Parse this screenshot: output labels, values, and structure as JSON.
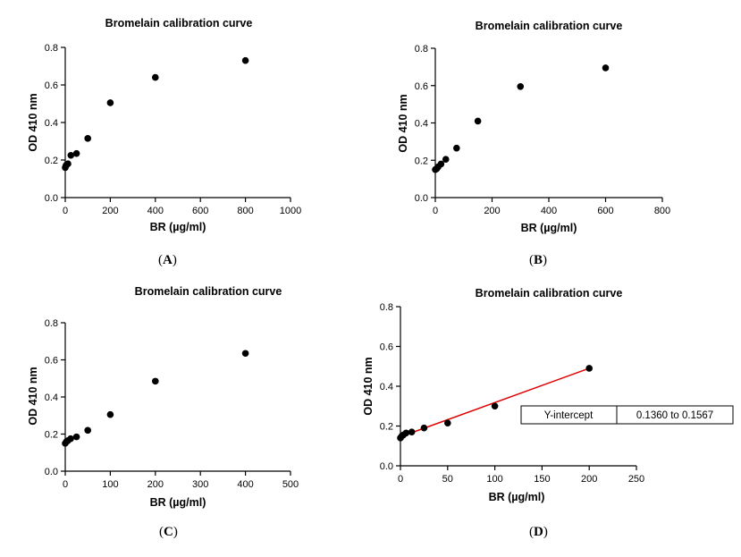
{
  "chart_data": [
    {
      "type": "scatter",
      "title": "Bromelain calibration curve",
      "xlabel": "BR (µg/ml)",
      "ylabel": "OD 410 nm",
      "xlim": [
        0,
        1000
      ],
      "ylim": [
        0,
        0.8
      ],
      "xticks": [
        0,
        200,
        400,
        600,
        800,
        1000
      ],
      "yticks": [
        0.0,
        0.2,
        0.4,
        0.6,
        0.8
      ],
      "grid": false,
      "points": [
        {
          "x": 0,
          "y": 0.16
        },
        {
          "x": 3,
          "y": 0.17
        },
        {
          "x": 6,
          "y": 0.175
        },
        {
          "x": 12,
          "y": 0.18
        },
        {
          "x": 25,
          "y": 0.225
        },
        {
          "x": 50,
          "y": 0.235
        },
        {
          "x": 100,
          "y": 0.315
        },
        {
          "x": 200,
          "y": 0.505
        },
        {
          "x": 400,
          "y": 0.64
        },
        {
          "x": 800,
          "y": 0.73
        }
      ],
      "caption": "A"
    },
    {
      "type": "scatter",
      "title": "Bromelain calibration curve",
      "xlabel": "BR (µg/ml)",
      "ylabel": "OD 410 nm",
      "xlim": [
        0,
        800
      ],
      "ylim": [
        0,
        0.8
      ],
      "xticks": [
        0,
        200,
        400,
        600,
        800
      ],
      "yticks": [
        0.0,
        0.2,
        0.4,
        0.6,
        0.8
      ],
      "grid": false,
      "points": [
        {
          "x": 0,
          "y": 0.15
        },
        {
          "x": 5,
          "y": 0.155
        },
        {
          "x": 10,
          "y": 0.165
        },
        {
          "x": 20,
          "y": 0.18
        },
        {
          "x": 37,
          "y": 0.205
        },
        {
          "x": 75,
          "y": 0.265
        },
        {
          "x": 150,
          "y": 0.41
        },
        {
          "x": 300,
          "y": 0.595
        },
        {
          "x": 600,
          "y": 0.695
        }
      ],
      "caption": "B"
    },
    {
      "type": "scatter",
      "title": "Bromelain calibration curve",
      "xlabel": "BR (µg/ml)",
      "ylabel": "OD 410 nm",
      "xlim": [
        0,
        500
      ],
      "ylim": [
        0,
        0.8
      ],
      "xticks": [
        0,
        100,
        200,
        300,
        400,
        500
      ],
      "yticks": [
        0.0,
        0.2,
        0.4,
        0.6,
        0.8
      ],
      "grid": false,
      "points": [
        {
          "x": 0,
          "y": 0.15
        },
        {
          "x": 3,
          "y": 0.16
        },
        {
          "x": 6,
          "y": 0.165
        },
        {
          "x": 12,
          "y": 0.175
        },
        {
          "x": 25,
          "y": 0.185
        },
        {
          "x": 50,
          "y": 0.22
        },
        {
          "x": 100,
          "y": 0.305
        },
        {
          "x": 200,
          "y": 0.485
        },
        {
          "x": 400,
          "y": 0.635
        }
      ],
      "caption": "C"
    },
    {
      "type": "scatter",
      "title": "Bromelain calibration curve",
      "xlabel": "BR (µg/ml)",
      "ylabel": "OD 410 nm",
      "xlim": [
        0,
        250
      ],
      "ylim": [
        0,
        0.8
      ],
      "xticks": [
        0,
        50,
        100,
        150,
        200,
        250
      ],
      "yticks": [
        0.0,
        0.2,
        0.4,
        0.6,
        0.8
      ],
      "grid": false,
      "points": [
        {
          "x": 0,
          "y": 0.14
        },
        {
          "x": 1.5,
          "y": 0.15
        },
        {
          "x": 3,
          "y": 0.155
        },
        {
          "x": 6,
          "y": 0.165
        },
        {
          "x": 12,
          "y": 0.17
        },
        {
          "x": 25,
          "y": 0.19
        },
        {
          "x": 50,
          "y": 0.215
        },
        {
          "x": 100,
          "y": 0.3
        },
        {
          "x": 200,
          "y": 0.49
        }
      ],
      "fit_line": {
        "x0": 0,
        "y0": 0.146,
        "x1": 200,
        "y1": 0.49,
        "color": "#e00000"
      },
      "table": {
        "label": "Y-intercept",
        "value": "0.1360 to 0.1567"
      },
      "caption": "D"
    }
  ],
  "colors": {
    "points": "#000000",
    "axis": "#000000",
    "fit": "#e00000"
  }
}
